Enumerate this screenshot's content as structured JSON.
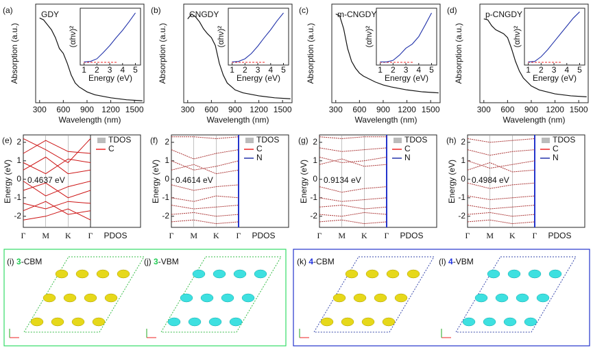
{
  "absorption": [
    {
      "label": "(a)",
      "title": "GDY",
      "x": [
        300,
        350,
        400,
        450,
        500,
        550,
        600,
        650,
        700,
        750,
        800,
        900,
        1000,
        1200,
        1400,
        1600
      ],
      "values": [
        0.86,
        0.84,
        0.79,
        0.74,
        0.66,
        0.55,
        0.5,
        0.4,
        0.28,
        0.2,
        0.16,
        0.11,
        0.08,
        0.05,
        0.03,
        0.02
      ],
      "inset": {
        "x": [
          1,
          1.5,
          2,
          2.5,
          3,
          3.5,
          4,
          4.5,
          5
        ],
        "values": [
          0.02,
          0.03,
          0.08,
          0.2,
          0.33,
          0.48,
          0.62,
          0.78,
          0.95
        ]
      }
    },
    {
      "label": "(b)",
      "title": "CNGDY",
      "x": [
        300,
        350,
        400,
        450,
        500,
        550,
        600,
        650,
        700,
        750,
        800,
        900,
        1000,
        1200,
        1400,
        1600
      ],
      "values": [
        0.85,
        0.9,
        0.87,
        0.82,
        0.75,
        0.7,
        0.66,
        0.58,
        0.4,
        0.28,
        0.2,
        0.13,
        0.1,
        0.07,
        0.05,
        0.04
      ],
      "inset": {
        "x": [
          1,
          1.5,
          2,
          2.5,
          3,
          3.5,
          4,
          4.5,
          5
        ],
        "values": [
          0.02,
          0.03,
          0.08,
          0.18,
          0.32,
          0.48,
          0.63,
          0.8,
          0.95
        ]
      }
    },
    {
      "label": "(c)",
      "title": "m-CNGDY",
      "x": [
        300,
        350,
        400,
        450,
        500,
        550,
        600,
        650,
        700,
        750,
        800,
        900,
        1000,
        1200,
        1400,
        1600
      ],
      "values": [
        0.9,
        0.88,
        0.75,
        0.55,
        0.42,
        0.35,
        0.3,
        0.27,
        0.25,
        0.23,
        0.21,
        0.18,
        0.16,
        0.13,
        0.11,
        0.1
      ],
      "inset": {
        "x": [
          1,
          1.5,
          2,
          2.5,
          3,
          3.5,
          4,
          4.5,
          5
        ],
        "values": [
          0.02,
          0.02,
          0.05,
          0.15,
          0.28,
          0.36,
          0.5,
          0.72,
          0.95
        ]
      }
    },
    {
      "label": "(d)",
      "title": "p-CNGDY",
      "x": [
        300,
        350,
        400,
        450,
        500,
        550,
        600,
        650,
        700,
        750,
        800,
        900,
        1000,
        1200,
        1400,
        1600
      ],
      "values": [
        0.85,
        0.84,
        0.78,
        0.74,
        0.72,
        0.7,
        0.66,
        0.55,
        0.42,
        0.32,
        0.25,
        0.17,
        0.13,
        0.09,
        0.07,
        0.06
      ],
      "inset": {
        "x": [
          1,
          1.5,
          2,
          2.5,
          3,
          3.5,
          4,
          4.5,
          5
        ],
        "values": [
          0.02,
          0.03,
          0.12,
          0.25,
          0.4,
          0.55,
          0.7,
          0.85,
          0.97
        ]
      }
    }
  ],
  "abs_xlim": [
    250,
    1620
  ],
  "abs_ylim": [
    0,
    1
  ],
  "abs_xticks": [
    300,
    600,
    900,
    1200,
    1500
  ],
  "abs_xlabel": "Wavelength (nm)",
  "abs_ylabel": "Absorption (a.u.)",
  "inset_xlim": [
    0.7,
    5.4
  ],
  "inset_ylim": [
    0,
    1
  ],
  "inset_xticks": [
    1,
    2,
    3,
    4,
    5
  ],
  "inset_xlabel": "Energy (eV)",
  "inset_ylabel": "(αhν)²",
  "bands": [
    {
      "label": "(e)",
      "gap": "0.4637 eV",
      "gap_color": "#8c8c8c",
      "legend": [
        "TDOS",
        "C"
      ],
      "lines": [
        [
          2.2,
          1.6,
          0.9,
          2.2
        ],
        [
          1.4,
          2.1,
          1.5,
          1.4
        ],
        [
          0.9,
          0.3,
          1.1,
          0.9
        ],
        [
          0.5,
          1.2,
          0.3,
          0.5
        ],
        [
          -0.1,
          -0.9,
          -0.4,
          -0.1
        ],
        [
          -0.6,
          -0.2,
          -1.0,
          -0.6
        ],
        [
          -1.3,
          -1.6,
          -1.2,
          -1.3
        ],
        [
          -1.7,
          -1.2,
          -1.9,
          -1.7
        ],
        [
          -2.2,
          -2.0,
          -1.6,
          -2.2
        ]
      ]
    },
    {
      "label": "(f)",
      "gap": "0.4614 eV",
      "gap_color": "#f5a800",
      "legend": [
        "TDOS",
        "C",
        "N"
      ],
      "lines": [
        [
          2.3,
          2.3,
          2.2,
          2.3
        ],
        [
          1.6,
          1.1,
          1.4,
          1.6
        ],
        [
          1.0,
          0.5,
          0.7,
          1.0
        ],
        [
          0.5,
          0.8,
          0.3,
          0.5
        ],
        [
          -0.3,
          -0.6,
          -0.4,
          -0.3
        ],
        [
          -1.0,
          -1.2,
          -0.9,
          -1.0
        ],
        [
          -1.4,
          -1.6,
          -1.5,
          -1.4
        ],
        [
          -1.9,
          -1.8,
          -2.0,
          -1.9
        ],
        [
          -2.3,
          -2.2,
          -2.4,
          -2.3
        ]
      ]
    },
    {
      "label": "(g)",
      "gap": "0.9134 eV",
      "gap_color": "#1fcc66",
      "legend": [
        "TDOS",
        "C",
        "N"
      ],
      "lines": [
        [
          2.3,
          2.2,
          2.3,
          2.3
        ],
        [
          1.7,
          1.5,
          1.6,
          1.7
        ],
        [
          1.2,
          0.9,
          1.0,
          1.2
        ],
        [
          0.8,
          1.1,
          0.7,
          0.8
        ],
        [
          -0.4,
          -0.7,
          -0.5,
          -0.4
        ],
        [
          -1.0,
          -1.2,
          -1.1,
          -1.0
        ],
        [
          -1.5,
          -1.4,
          -1.6,
          -1.5
        ],
        [
          -1.9,
          -2.0,
          -1.8,
          -1.9
        ],
        [
          -2.3,
          -2.2,
          -2.4,
          -2.3
        ]
      ]
    },
    {
      "label": "(h)",
      "gap": "0.4984 eV",
      "gap_color": "#2233dd",
      "legend": [
        "TDOS",
        "C",
        "N"
      ],
      "lines": [
        [
          2.2,
          2.0,
          2.1,
          2.2
        ],
        [
          1.6,
          1.3,
          1.5,
          1.6
        ],
        [
          1.0,
          0.6,
          0.8,
          1.0
        ],
        [
          0.5,
          0.9,
          0.4,
          0.5
        ],
        [
          -0.2,
          -0.5,
          -0.3,
          -0.2
        ],
        [
          -0.9,
          -1.1,
          -1.0,
          -0.9
        ],
        [
          -1.4,
          -1.6,
          -1.5,
          -1.4
        ],
        [
          -1.9,
          -1.8,
          -2.0,
          -1.9
        ],
        [
          -2.3,
          -2.2,
          -2.4,
          -2.3
        ]
      ]
    }
  ],
  "band_ylim": [
    -2.6,
    2.4
  ],
  "band_yticks": [
    -2,
    -1,
    0,
    1,
    2
  ],
  "band_xlabels": [
    "Γ",
    "M",
    "K",
    "Γ"
  ],
  "band_ylabel": "Energy (eV)",
  "pdos_label": "PDOS",
  "structures": [
    {
      "label": "(i)",
      "num": "3",
      "state": "-CBM"
    },
    {
      "label": "(j)",
      "num": "3",
      "state": "-VBM"
    },
    {
      "label": "(k)",
      "num": "4",
      "state": "-CBM"
    },
    {
      "label": "(l)",
      "num": "4",
      "state": "-VBM"
    }
  ]
}
